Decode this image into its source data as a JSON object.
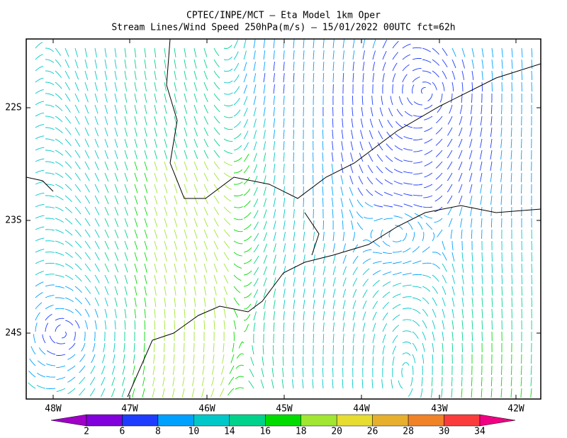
{
  "header": {
    "title": "CPTEC/INPE/MCT –  Eta Model 1km Oper",
    "subtitle": "Stream Lines/Wind Speed 250hPa(m/s) – 15/01/2022 00UTC fct=62h"
  },
  "map": {
    "lon_labels": [
      "48W",
      "47W",
      "46W",
      "45W",
      "44W",
      "43W",
      "42W"
    ],
    "lat_labels": [
      "22S",
      "23S",
      "24S"
    ]
  },
  "colorbar": {
    "labels": [
      "2",
      "6",
      "8",
      "10",
      "14",
      "16",
      "18",
      "20",
      "26",
      "28",
      "30",
      "34"
    ],
    "colors": [
      "#a000c8",
      "#8200dc",
      "#1e3cff",
      "#00a0ff",
      "#00c8c8",
      "#00d28c",
      "#00dc00",
      "#a0e632",
      "#e6dc32",
      "#e6af2d",
      "#f08228",
      "#fa3c3c",
      "#f00082"
    ]
  }
}
